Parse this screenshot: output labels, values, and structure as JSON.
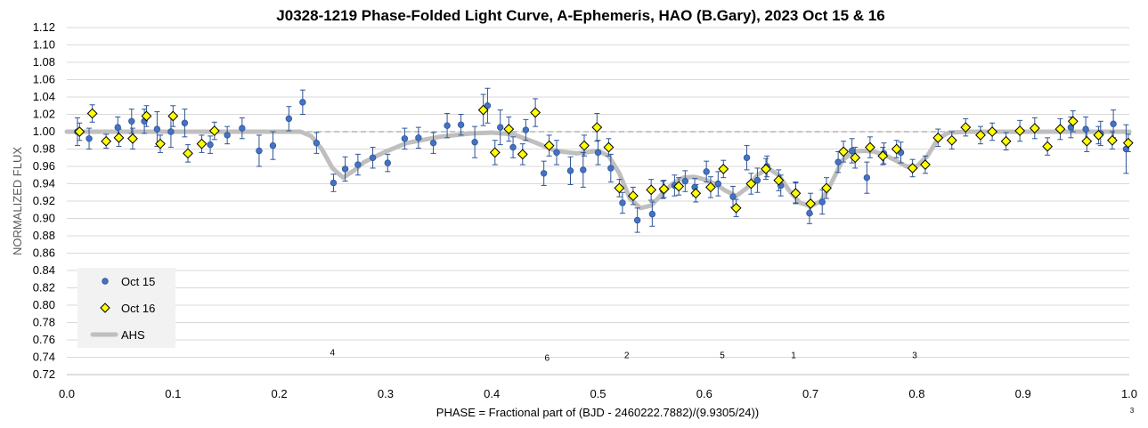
{
  "chart_data": {
    "type": "scatter",
    "title": "J0328-1219 Phase-Folded Light Curve, A-Ephemeris, HAO (B.Gary), 2023 Oct 15 & 16",
    "xlabel": "PHASE = Fractional part of (BJD - 2460222.7882)/(9.9305/24))",
    "ylabel": "NORMALIZED FLUX",
    "xlim": [
      0.0,
      1.0
    ],
    "ylim": [
      0.72,
      1.12
    ],
    "x_ticks": [
      "0.0",
      "0.1",
      "0.2",
      "0.3",
      "0.4",
      "0.5",
      "0.6",
      "0.7",
      "0.8",
      "0.9",
      "1.0"
    ],
    "y_ticks": [
      "0.72",
      "0.74",
      "0.76",
      "0.78",
      "0.80",
      "0.82",
      "0.84",
      "0.86",
      "0.88",
      "0.90",
      "0.92",
      "0.94",
      "0.96",
      "0.98",
      "1.00",
      "1.02",
      "1.04",
      "1.06",
      "1.08",
      "1.10",
      "1.12"
    ],
    "grid": true,
    "reference_line": 1.0,
    "legend_position": "bottom-left",
    "series": [
      {
        "name": "Oct 15",
        "marker": "circle",
        "color": "#4472c4",
        "points": [
          [
            0.01,
            1.0,
            0.016
          ],
          [
            0.021,
            0.992,
            0.012
          ],
          [
            0.048,
            1.005,
            0.012
          ],
          [
            0.061,
            1.012,
            0.014
          ],
          [
            0.073,
            1.012,
            0.014
          ],
          [
            0.085,
            1.003,
            0.02
          ],
          [
            0.098,
            1.0,
            0.018
          ],
          [
            0.111,
            1.01,
            0.016
          ],
          [
            0.135,
            0.985,
            0.01
          ],
          [
            0.151,
            0.996,
            0.01
          ],
          [
            0.165,
            1.004,
            0.012
          ],
          [
            0.181,
            0.978,
            0.018
          ],
          [
            0.194,
            0.984,
            0.016
          ],
          [
            0.209,
            1.015,
            0.014
          ],
          [
            0.222,
            1.034,
            0.014
          ],
          [
            0.235,
            0.987,
            0.012
          ],
          [
            0.251,
            0.941,
            0.01
          ],
          [
            0.262,
            0.957,
            0.014
          ],
          [
            0.274,
            0.962,
            0.012
          ],
          [
            0.288,
            0.97,
            0.012
          ],
          [
            0.302,
            0.964,
            0.01
          ],
          [
            0.318,
            0.992,
            0.012
          ],
          [
            0.331,
            0.993,
            0.012
          ],
          [
            0.345,
            0.987,
            0.012
          ],
          [
            0.358,
            1.007,
            0.014
          ],
          [
            0.371,
            1.008,
            0.012
          ],
          [
            0.384,
            0.988,
            0.018
          ],
          [
            0.396,
            1.03,
            0.02
          ],
          [
            0.408,
            1.005,
            0.02
          ],
          [
            0.42,
            0.982,
            0.012
          ],
          [
            0.432,
            1.002,
            0.012
          ],
          [
            0.449,
            0.952,
            0.014
          ],
          [
            0.461,
            0.976,
            0.014
          ],
          [
            0.474,
            0.955,
            0.016
          ],
          [
            0.486,
            0.956,
            0.02
          ],
          [
            0.5,
            0.976,
            0.014
          ],
          [
            0.512,
            0.958,
            0.016
          ],
          [
            0.523,
            0.918,
            0.012
          ],
          [
            0.537,
            0.898,
            0.014
          ],
          [
            0.551,
            0.905,
            0.014
          ],
          [
            0.561,
            0.933,
            0.01
          ],
          [
            0.572,
            0.938,
            0.012
          ],
          [
            0.582,
            0.943,
            0.012
          ],
          [
            0.591,
            0.936,
            0.01
          ],
          [
            0.602,
            0.954,
            0.012
          ],
          [
            0.613,
            0.94,
            0.014
          ],
          [
            0.627,
            0.925,
            0.012
          ],
          [
            0.64,
            0.97,
            0.014
          ],
          [
            0.65,
            0.944,
            0.014
          ],
          [
            0.659,
            0.96,
            0.012
          ],
          [
            0.672,
            0.938,
            0.012
          ],
          [
            0.686,
            0.93,
            0.012
          ],
          [
            0.699,
            0.906,
            0.012
          ],
          [
            0.711,
            0.919,
            0.014
          ],
          [
            0.726,
            0.965,
            0.012
          ],
          [
            0.739,
            0.978,
            0.014
          ],
          [
            0.753,
            0.947,
            0.018
          ],
          [
            0.769,
            0.975,
            0.012
          ],
          [
            0.785,
            0.976,
            0.012
          ],
          [
            0.945,
            1.005,
            0.012
          ],
          [
            0.959,
            1.003,
            0.014
          ],
          [
            0.973,
            0.998,
            0.014
          ],
          [
            0.985,
            1.009,
            0.016
          ],
          [
            0.997,
            0.98,
            0.028
          ]
        ]
      },
      {
        "name": "Oct 16",
        "marker": "diamond",
        "color": "#ffff00",
        "points": [
          [
            0.012,
            1.0,
            0.01
          ],
          [
            0.024,
            1.021,
            0.01
          ],
          [
            0.037,
            0.989,
            0.008
          ],
          [
            0.049,
            0.993,
            0.01
          ],
          [
            0.062,
            0.992,
            0.012
          ],
          [
            0.075,
            1.018,
            0.012
          ],
          [
            0.088,
            0.986,
            0.01
          ],
          [
            0.1,
            1.018,
            0.012
          ],
          [
            0.114,
            0.975,
            0.01
          ],
          [
            0.127,
            0.986,
            0.01
          ],
          [
            0.139,
            1.001,
            0.01
          ],
          [
            0.392,
            1.025,
            0.018
          ],
          [
            0.403,
            0.976,
            0.014
          ],
          [
            0.416,
            1.003,
            0.014
          ],
          [
            0.429,
            0.974,
            0.012
          ],
          [
            0.441,
            1.022,
            0.016
          ],
          [
            0.454,
            0.984,
            0.012
          ],
          [
            0.487,
            0.984,
            0.012
          ],
          [
            0.499,
            1.005,
            0.016
          ],
          [
            0.51,
            0.982,
            0.01
          ],
          [
            0.52,
            0.935,
            0.01
          ],
          [
            0.533,
            0.926,
            0.01
          ],
          [
            0.55,
            0.933,
            0.012
          ],
          [
            0.562,
            0.934,
            0.01
          ],
          [
            0.576,
            0.937,
            0.01
          ],
          [
            0.592,
            0.929,
            0.01
          ],
          [
            0.606,
            0.936,
            0.012
          ],
          [
            0.618,
            0.957,
            0.01
          ],
          [
            0.63,
            0.912,
            0.01
          ],
          [
            0.644,
            0.94,
            0.012
          ],
          [
            0.658,
            0.957,
            0.012
          ],
          [
            0.67,
            0.944,
            0.012
          ],
          [
            0.686,
            0.929,
            0.012
          ],
          [
            0.7,
            0.917,
            0.012
          ],
          [
            0.715,
            0.935,
            0.012
          ],
          [
            0.731,
            0.977,
            0.012
          ],
          [
            0.742,
            0.97,
            0.012
          ],
          [
            0.756,
            0.982,
            0.012
          ],
          [
            0.768,
            0.972,
            0.01
          ],
          [
            0.781,
            0.98,
            0.01
          ],
          [
            0.796,
            0.958,
            0.01
          ],
          [
            0.808,
            0.962,
            0.01
          ],
          [
            0.82,
            0.993,
            0.01
          ],
          [
            0.833,
            0.99,
            0.01
          ],
          [
            0.846,
            1.005,
            0.01
          ],
          [
            0.86,
            0.996,
            0.01
          ],
          [
            0.871,
            1.0,
            0.01
          ],
          [
            0.884,
            0.989,
            0.01
          ],
          [
            0.897,
            1.001,
            0.012
          ],
          [
            0.911,
            1.004,
            0.012
          ],
          [
            0.923,
            0.983,
            0.01
          ],
          [
            0.935,
            1.003,
            0.012
          ],
          [
            0.947,
            1.012,
            0.012
          ],
          [
            0.96,
            0.989,
            0.012
          ],
          [
            0.971,
            0.996,
            0.01
          ],
          [
            0.984,
            0.99,
            0.01
          ],
          [
            0.999,
            0.987,
            0.01
          ]
        ]
      },
      {
        "name": "AHS",
        "marker": "line",
        "color": "#bfbfbf",
        "points": [
          [
            0.0,
            1.0
          ],
          [
            0.22,
            1.0
          ],
          [
            0.23,
            0.995
          ],
          [
            0.24,
            0.98
          ],
          [
            0.25,
            0.958
          ],
          [
            0.26,
            0.947
          ],
          [
            0.27,
            0.955
          ],
          [
            0.28,
            0.965
          ],
          [
            0.3,
            0.977
          ],
          [
            0.32,
            0.987
          ],
          [
            0.35,
            0.994
          ],
          [
            0.38,
            0.998
          ],
          [
            0.4,
            0.999
          ],
          [
            0.42,
            0.997
          ],
          [
            0.44,
            0.988
          ],
          [
            0.46,
            0.978
          ],
          [
            0.48,
            0.975
          ],
          [
            0.5,
            0.978
          ],
          [
            0.51,
            0.972
          ],
          [
            0.52,
            0.952
          ],
          [
            0.53,
            0.923
          ],
          [
            0.54,
            0.912
          ],
          [
            0.55,
            0.915
          ],
          [
            0.56,
            0.928
          ],
          [
            0.57,
            0.94
          ],
          [
            0.58,
            0.947
          ],
          [
            0.59,
            0.948
          ],
          [
            0.6,
            0.945
          ],
          [
            0.61,
            0.94
          ],
          [
            0.62,
            0.932
          ],
          [
            0.63,
            0.926
          ],
          [
            0.64,
            0.935
          ],
          [
            0.65,
            0.95
          ],
          [
            0.66,
            0.958
          ],
          [
            0.67,
            0.95
          ],
          [
            0.68,
            0.932
          ],
          [
            0.69,
            0.918
          ],
          [
            0.7,
            0.914
          ],
          [
            0.71,
            0.92
          ],
          [
            0.72,
            0.942
          ],
          [
            0.73,
            0.967
          ],
          [
            0.74,
            0.977
          ],
          [
            0.75,
            0.978
          ],
          [
            0.76,
            0.977
          ],
          [
            0.77,
            0.973
          ],
          [
            0.78,
            0.967
          ],
          [
            0.79,
            0.96
          ],
          [
            0.8,
            0.96
          ],
          [
            0.81,
            0.972
          ],
          [
            0.82,
            0.992
          ],
          [
            0.83,
            0.999
          ],
          [
            0.85,
            1.0
          ],
          [
            1.0,
            1.0
          ]
        ]
      }
    ],
    "annotations": [
      {
        "label": "4",
        "x": 0.25,
        "y": 0.745
      },
      {
        "label": "6",
        "x": 0.452,
        "y": 0.739
      },
      {
        "label": "2",
        "x": 0.527,
        "y": 0.742
      },
      {
        "label": "5",
        "x": 0.617,
        "y": 0.742
      },
      {
        "label": "1",
        "x": 0.684,
        "y": 0.742
      },
      {
        "label": "3",
        "x": 0.798,
        "y": 0.742
      }
    ],
    "footnote": "3"
  }
}
